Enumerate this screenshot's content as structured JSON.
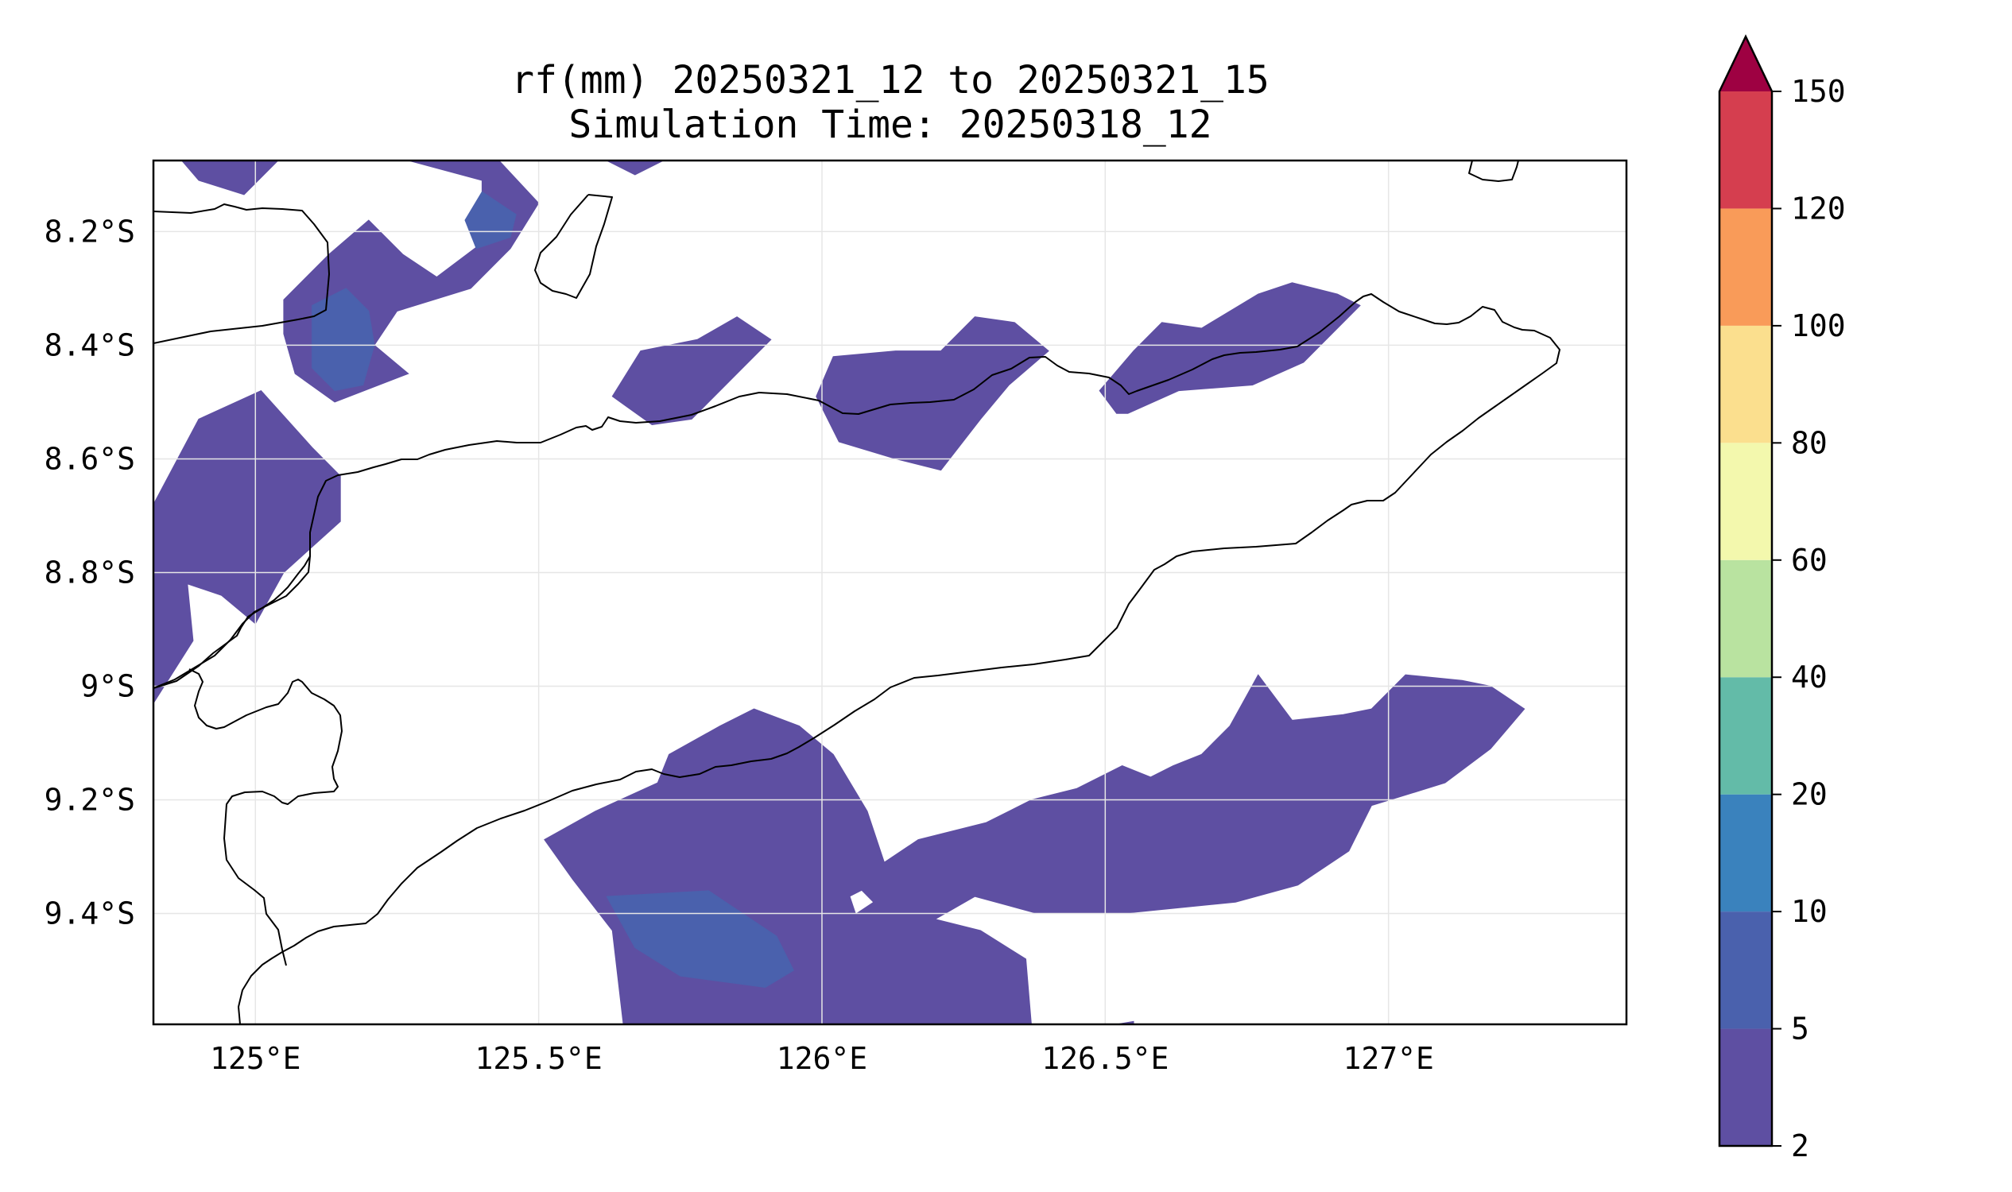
{
  "title": {
    "line1": "rf(mm) 20250321_12 to 20250321_15",
    "line2": "Simulation Time: 20250318_12"
  },
  "map": {
    "projection": "PlateCarree",
    "extent": {
      "lon_min": 124.82,
      "lon_max": 127.42,
      "lat_min": -9.595,
      "lat_max": -8.075
    },
    "x_ticks": [
      {
        "value": 125.0,
        "label": "125°E"
      },
      {
        "value": 125.5,
        "label": "125.5°E"
      },
      {
        "value": 126.0,
        "label": "126°E"
      },
      {
        "value": 126.5,
        "label": "126.5°E"
      },
      {
        "value": 127.0,
        "label": "127°E"
      }
    ],
    "y_ticks": [
      {
        "value": -8.2,
        "label": "8.2°S"
      },
      {
        "value": -8.4,
        "label": "8.4°S"
      },
      {
        "value": -8.6,
        "label": "8.6°S"
      },
      {
        "value": -8.8,
        "label": "8.8°S"
      },
      {
        "value": -9.0,
        "label": "9°S"
      },
      {
        "value": -9.2,
        "label": "9.2°S"
      },
      {
        "value": -9.4,
        "label": "9.4°S"
      }
    ],
    "grid": true,
    "coastline_color": "#000000"
  },
  "colorbar": {
    "levels": [
      {
        "value": 2,
        "label": "2"
      },
      {
        "value": 5,
        "label": "5"
      },
      {
        "value": 10,
        "label": "10"
      },
      {
        "value": 20,
        "label": "20"
      },
      {
        "value": 40,
        "label": "40"
      },
      {
        "value": 60,
        "label": "60"
      },
      {
        "value": 80,
        "label": "80"
      },
      {
        "value": 100,
        "label": "100"
      },
      {
        "value": 120,
        "label": "120"
      },
      {
        "value": 150,
        "label": "150"
      }
    ],
    "colors": [
      "#5e4fa2",
      "#4a61ad",
      "#3a82bd",
      "#63bba8",
      "#b9e3a0",
      "#f3f8ad",
      "#fbdf8e",
      "#f99b59",
      "#d53e4f"
    ],
    "extend_max_color": "#9e0142",
    "extend": "max"
  },
  "chart_data": {
    "type": "contourf",
    "variable": "rf(mm)",
    "bins": [
      "2-5",
      "5-10",
      "10-20",
      "20-40",
      "40-60",
      "60-80",
      "80-100",
      "100-120",
      "120-150",
      ">150"
    ],
    "visible_max_bin": "10-20",
    "regions": [
      {
        "bins": [
          "2-5",
          "5-10"
        ],
        "polygons": [
          [
            [
              124.87,
              -8.075
            ],
            [
              125.04,
              -8.075
            ],
            [
              124.98,
              -8.135
            ],
            [
              124.9,
              -8.11
            ]
          ]
        ]
      },
      {
        "bins": [
          "2-5",
          "5-10"
        ],
        "polygons": [
          [
            [
              125.27,
              -8.075
            ],
            [
              125.43,
              -8.075
            ],
            [
              125.5,
              -8.15
            ],
            [
              125.45,
              -8.23
            ],
            [
              125.38,
              -8.3
            ],
            [
              125.25,
              -8.34
            ],
            [
              125.21,
              -8.4
            ],
            [
              125.27,
              -8.45
            ],
            [
              125.14,
              -8.5
            ],
            [
              125.07,
              -8.45
            ],
            [
              125.05,
              -8.38
            ],
            [
              125.05,
              -8.32
            ],
            [
              125.13,
              -8.24
            ],
            [
              125.2,
              -8.18
            ],
            [
              125.26,
              -8.24
            ],
            [
              125.32,
              -8.28
            ],
            [
              125.4,
              -8.22
            ],
            [
              125.4,
              -8.11
            ]
          ],
          [
            [
              125.16,
              -8.3
            ],
            [
              125.2,
              -8.34
            ],
            [
              125.21,
              -8.4
            ],
            [
              125.19,
              -8.47
            ],
            [
              125.14,
              -8.48
            ],
            [
              125.1,
              -8.44
            ],
            [
              125.1,
              -8.33
            ]
          ],
          [
            [
              125.4,
              -8.13
            ],
            [
              125.46,
              -8.17
            ],
            [
              125.45,
              -8.21
            ],
            [
              125.39,
              -8.23
            ],
            [
              125.37,
              -8.18
            ]
          ]
        ]
      },
      {
        "bins": [
          "2-5",
          "5-10"
        ],
        "polygons": [
          [
            [
              125.62,
              -8.075
            ],
            [
              125.72,
              -8.075
            ],
            [
              125.67,
              -8.1
            ]
          ]
        ]
      },
      {
        "bins": [
          "2-5",
          "5-10",
          "10-20"
        ],
        "polygons": [
          [
            [
              124.82,
              -8.68
            ],
            [
              124.9,
              -8.53
            ],
            [
              125.01,
              -8.48
            ],
            [
              125.1,
              -8.58
            ],
            [
              125.15,
              -8.63
            ],
            [
              125.15,
              -8.71
            ],
            [
              125.05,
              -8.8
            ],
            [
              125.0,
              -8.89
            ],
            [
              124.94,
              -8.84
            ],
            [
              124.88,
              -8.82
            ],
            [
              124.89,
              -8.92
            ],
            [
              124.82,
              -9.03
            ]
          ]
        ]
      },
      {
        "bins": [
          "2-5",
          "5-10"
        ],
        "polygons": [
          [
            [
              125.63,
              -8.49
            ],
            [
              125.68,
              -8.41
            ],
            [
              125.78,
              -8.39
            ],
            [
              125.85,
              -8.35
            ],
            [
              125.91,
              -8.39
            ],
            [
              125.86,
              -8.44
            ],
            [
              125.77,
              -8.53
            ],
            [
              125.7,
              -8.54
            ]
          ]
        ]
      },
      {
        "bins": [
          "2-5",
          "5-10",
          "10-20"
        ],
        "polygons": [
          [
            [
              125.99,
              -8.49
            ],
            [
              126.02,
              -8.42
            ],
            [
              126.13,
              -8.41
            ],
            [
              126.21,
              -8.41
            ],
            [
              126.27,
              -8.35
            ],
            [
              126.34,
              -8.36
            ],
            [
              126.4,
              -8.41
            ],
            [
              126.33,
              -8.47
            ],
            [
              126.28,
              -8.53
            ],
            [
              126.21,
              -8.62
            ],
            [
              126.13,
              -8.6
            ],
            [
              126.03,
              -8.57
            ]
          ]
        ]
      },
      {
        "bins": [
          "2-5",
          "5-10"
        ],
        "polygons": [
          [
            [
              126.49,
              -8.48
            ],
            [
              126.55,
              -8.41
            ],
            [
              126.6,
              -8.36
            ],
            [
              126.67,
              -8.37
            ],
            [
              126.77,
              -8.31
            ],
            [
              126.83,
              -8.29
            ],
            [
              126.91,
              -8.31
            ],
            [
              126.95,
              -8.33
            ],
            [
              126.85,
              -8.43
            ],
            [
              126.76,
              -8.47
            ],
            [
              126.63,
              -8.48
            ],
            [
              126.54,
              -8.52
            ],
            [
              126.52,
              -8.52
            ]
          ]
        ]
      },
      {
        "bins": [
          "2-5",
          "5-10",
          "10-20"
        ],
        "polygons": [
          [
            [
              125.51,
              -9.27
            ],
            [
              125.6,
              -9.22
            ],
            [
              125.71,
              -9.17
            ],
            [
              125.73,
              -9.12
            ],
            [
              125.82,
              -9.07
            ],
            [
              125.88,
              -9.04
            ],
            [
              125.96,
              -9.07
            ],
            [
              126.02,
              -9.12
            ],
            [
              126.08,
              -9.22
            ],
            [
              126.11,
              -9.31
            ],
            [
              126.17,
              -9.27
            ],
            [
              126.29,
              -9.24
            ],
            [
              126.37,
              -9.2
            ],
            [
              126.45,
              -9.18
            ],
            [
              126.53,
              -9.14
            ],
            [
              126.58,
              -9.16
            ],
            [
              126.62,
              -9.14
            ],
            [
              126.67,
              -9.12
            ],
            [
              126.72,
              -9.07
            ],
            [
              126.77,
              -8.98
            ],
            [
              126.83,
              -9.06
            ],
            [
              126.92,
              -9.05
            ],
            [
              126.97,
              -9.04
            ],
            [
              127.03,
              -8.98
            ],
            [
              127.13,
              -8.99
            ],
            [
              127.18,
              -9.0
            ],
            [
              127.24,
              -9.04
            ],
            [
              127.18,
              -9.11
            ],
            [
              127.1,
              -9.17
            ],
            [
              126.97,
              -9.21
            ],
            [
              126.93,
              -9.29
            ],
            [
              126.84,
              -9.35
            ],
            [
              126.73,
              -9.38
            ],
            [
              126.53,
              -9.4
            ],
            [
              126.38,
              -9.4
            ],
            [
              126.27,
              -9.37
            ],
            [
              126.2,
              -9.41
            ],
            [
              126.28,
              -9.43
            ],
            [
              126.36,
              -9.48
            ],
            [
              126.37,
              -9.6
            ],
            [
              125.65,
              -9.6
            ],
            [
              125.63,
              -9.43
            ],
            [
              125.56,
              -9.34
            ]
          ],
          [
            [
              125.62,
              -9.37
            ],
            [
              125.8,
              -9.36
            ],
            [
              125.92,
              -9.44
            ],
            [
              125.95,
              -9.5
            ],
            [
              125.9,
              -9.53
            ],
            [
              125.75,
              -9.51
            ],
            [
              125.67,
              -9.46
            ]
          ]
        ]
      },
      {
        "bins": [
          "2-5"
        ],
        "polygons": [
          [
            [
              126.52,
              -9.595
            ],
            [
              126.55,
              -9.59
            ],
            [
              126.55,
              -9.595
            ]
          ]
        ]
      }
    ],
    "holes": [
      [
        [
          126.05,
          -9.37
        ],
        [
          126.07,
          -9.36
        ],
        [
          126.09,
          -9.38
        ],
        [
          126.06,
          -9.4
        ]
      ]
    ]
  }
}
